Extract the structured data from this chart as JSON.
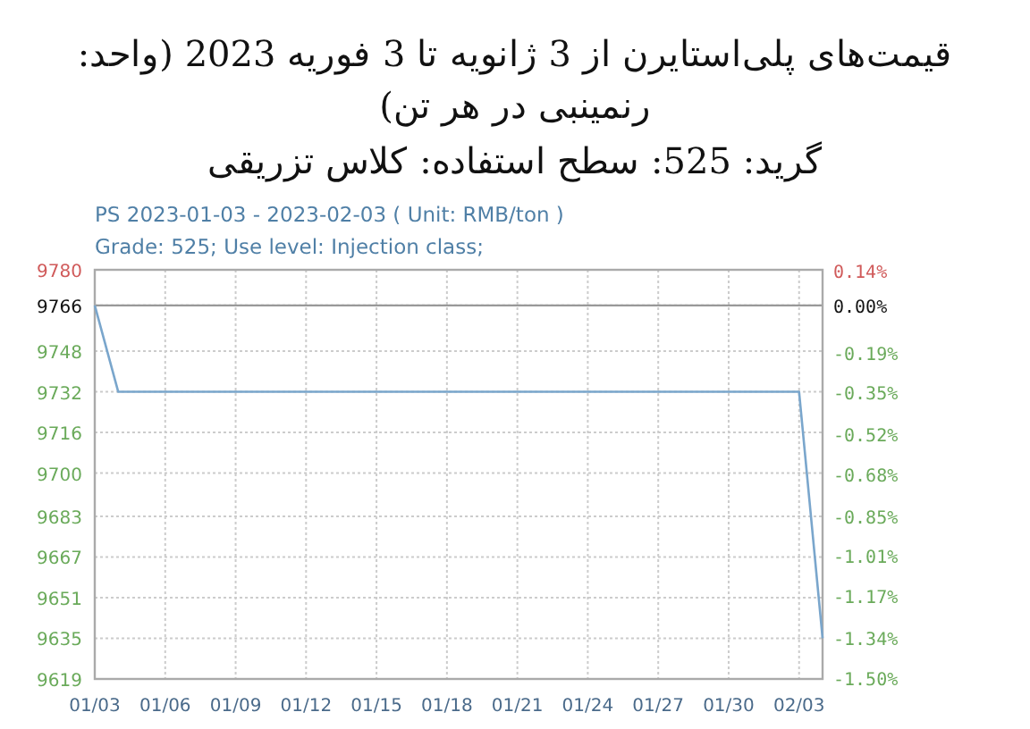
{
  "chart_data": {
    "type": "line",
    "title": "قیمت‌های پلی‌استایرن از 3 ژانویه تا 3 فوریه 2023 (واحد: رنمینبی در هر تن)",
    "subtitle": "گرید: 525: سطح استفاده: کلاس تزریقی",
    "annotations": [
      "PS 2023-01-03 - 2023-02-03    ( Unit: RMB/ton )",
      "Grade: 525; Use level: Injection class;"
    ],
    "x": [
      "2023-01-03",
      "2023-01-04",
      "2023-02-02",
      "2023-02-03"
    ],
    "series": [
      {
        "color": "#7aa6cc",
        "values": [
          9766,
          9732,
          9732,
          9635
        ]
      }
    ],
    "xlim": [
      "2023-01-03",
      "2023-02-03"
    ],
    "xticks": [
      {
        "value": "2023-01-03",
        "label": "01/03"
      },
      {
        "value": "2023-01-06",
        "label": "01/06"
      },
      {
        "value": "2023-01-09",
        "label": "01/09"
      },
      {
        "value": "2023-01-12",
        "label": "01/12"
      },
      {
        "value": "2023-01-15",
        "label": "01/15"
      },
      {
        "value": "2023-01-18",
        "label": "01/18"
      },
      {
        "value": "2023-01-21",
        "label": "01/21"
      },
      {
        "value": "2023-01-24",
        "label": "01/24"
      },
      {
        "value": "2023-01-27",
        "label": "01/27"
      },
      {
        "value": "2023-01-30",
        "label": "01/30"
      },
      {
        "value": "2023-02-02",
        "label": "02/03"
      }
    ],
    "ylim": [
      9619,
      9780
    ],
    "yticks": [
      9780,
      9766,
      9748,
      9732,
      9716,
      9700,
      9683,
      9667,
      9651,
      9635,
      9619
    ],
    "y2lim": [
      -1.505,
      0.143
    ],
    "y2ticks": [
      {
        "value": 0.14,
        "label": "0.14%"
      },
      {
        "value": 0,
        "label": "0.00%"
      },
      {
        "value": -0.19,
        "label": "-0.19%"
      },
      {
        "value": -0.35,
        "label": "-0.35%"
      },
      {
        "value": -0.52,
        "label": "-0.52%"
      },
      {
        "value": -0.68,
        "label": "-0.68%"
      },
      {
        "value": -0.85,
        "label": "-0.85%"
      },
      {
        "value": -1.01,
        "label": "-1.01%"
      },
      {
        "value": -1.17,
        "label": "-1.17%"
      },
      {
        "value": -1.34,
        "label": "-1.34%"
      },
      {
        "value": -1.5,
        "label": "-1.50%"
      }
    ],
    "ref_lines": [
      {
        "axis": "y",
        "value": 9766,
        "color": "#999999"
      }
    ],
    "grid": true,
    "marker": "none",
    "line_style": "solid"
  }
}
